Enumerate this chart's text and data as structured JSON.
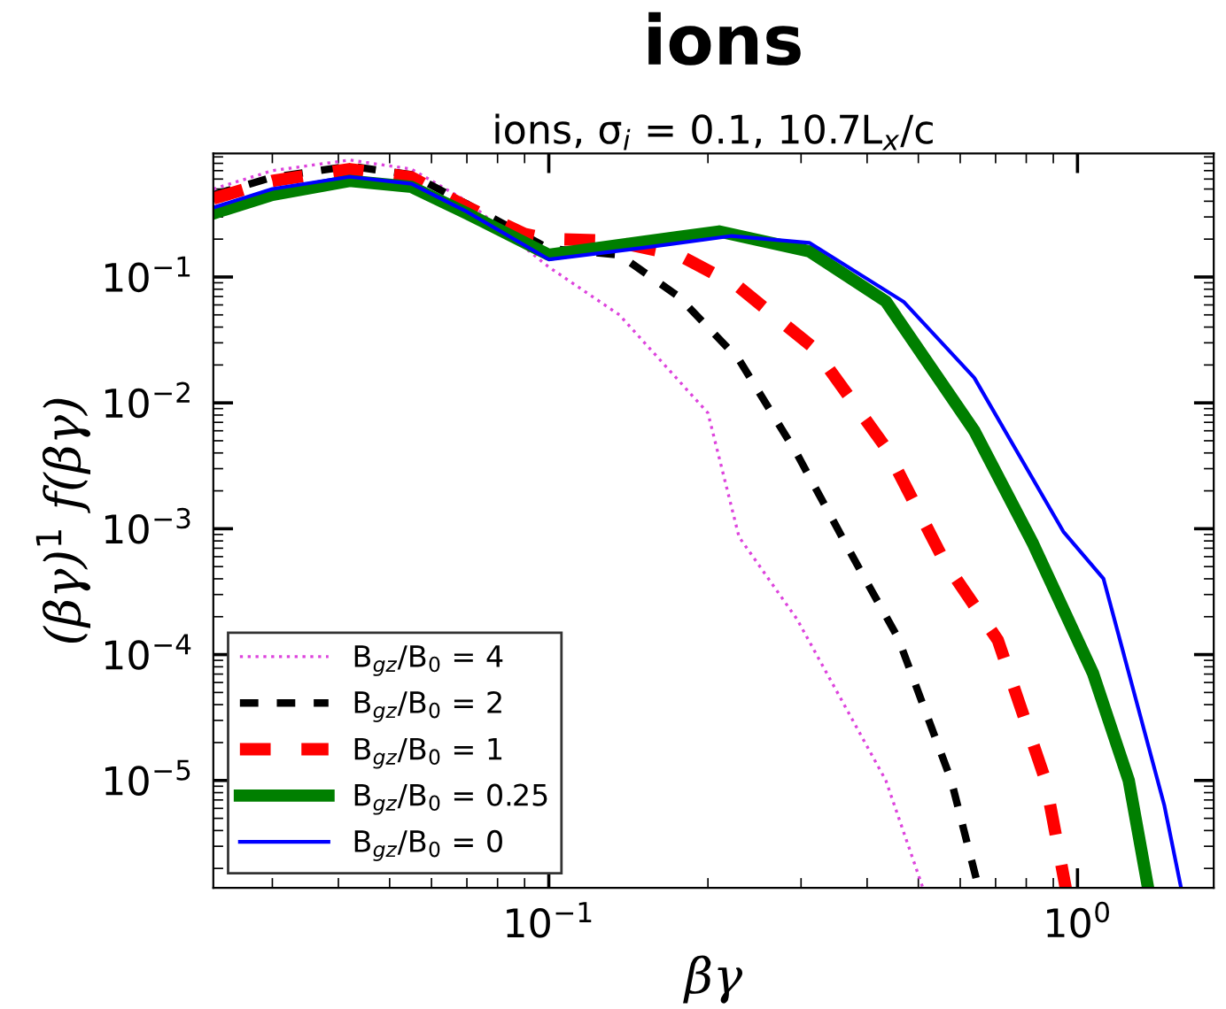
{
  "chart_data": {
    "type": "line",
    "title": "ions",
    "subtitle": "ions, σ$_{i}$ = 0.1, 10.7L$_{x}$/c",
    "xlabel": "βγ",
    "ylabel": "(βγ)$^{1}$ f(βγ)",
    "log": "xy",
    "xlim": [
      0.0232,
      1.81
    ],
    "ylim": [
      1.4e-06,
      0.96
    ],
    "xticks": [
      {
        "value": 0.1,
        "label": "10$^{−1}$"
      },
      {
        "value": 1,
        "label": "10$^{0}$"
      }
    ],
    "yticks": [
      {
        "value": 1e-05,
        "label": "10$^{−5}$"
      },
      {
        "value": 0.0001,
        "label": "10$^{−4}$"
      },
      {
        "value": 0.001,
        "label": "10$^{−3}$"
      },
      {
        "value": 0.01,
        "label": "10$^{−2}$"
      },
      {
        "value": 0.1,
        "label": "10$^{−1}$"
      }
    ],
    "grid": false,
    "legend": "bottom left",
    "marker": "none",
    "series": [
      {
        "name": "B$_{gz}$/B$_{0}$ = 4",
        "color": "#dd44dd",
        "line_style": "dotted",
        "x": [
          0.0232,
          0.03,
          0.042,
          0.055,
          0.07,
          0.1,
          0.136,
          0.2,
          0.229,
          0.295,
          0.434,
          0.51
        ],
        "values": [
          0.5,
          0.7,
          0.85,
          0.72,
          0.4,
          0.12,
          0.05,
          0.0083,
          0.00086,
          0.00019,
          1e-05,
          1.4e-06
        ]
      },
      {
        "name": "B$_{gz}$/B$_{0}$ = 2",
        "color": "#000000",
        "line_style": "dashed",
        "x": [
          0.0232,
          0.03,
          0.042,
          0.055,
          0.07,
          0.1,
          0.136,
          0.176,
          0.229,
          0.295,
          0.38,
          0.458,
          0.577,
          0.65
        ],
        "values": [
          0.45,
          0.62,
          0.76,
          0.65,
          0.38,
          0.168,
          0.15,
          0.07,
          0.022,
          0.0039,
          0.00055,
          0.000135,
          1e-05,
          1.4e-06
        ]
      },
      {
        "name": "B$_{gz}$/B$_{0}$ = 1",
        "color": "#ff0000",
        "line_style": "dashed",
        "x": [
          0.0232,
          0.03,
          0.042,
          0.055,
          0.07,
          0.09,
          0.1,
          0.13,
          0.176,
          0.229,
          0.318,
          0.434,
          0.56,
          0.707,
          0.87,
          0.95
        ],
        "values": [
          0.42,
          0.58,
          0.72,
          0.62,
          0.36,
          0.22,
          0.2,
          0.195,
          0.15,
          0.083,
          0.027,
          0.0044,
          0.00055,
          0.00013,
          1e-05,
          1.4e-06
        ]
      },
      {
        "name": "B$_{gz}$/B$_{0}$ = 0.25",
        "color": "#007f00",
        "line_style": "solid",
        "x": [
          0.0232,
          0.03,
          0.042,
          0.055,
          0.07,
          0.1,
          0.15,
          0.21,
          0.311,
          0.434,
          0.638,
          0.824,
          1.07,
          1.25,
          1.36
        ],
        "values": [
          0.32,
          0.45,
          0.58,
          0.52,
          0.32,
          0.15,
          0.19,
          0.23,
          0.16,
          0.064,
          0.006,
          0.00076,
          7.1e-05,
          1e-05,
          1.4e-06
        ]
      },
      {
        "name": "B$_{gz}$/B$_{0}$ = 0",
        "color": "#0000ff",
        "line_style": "solid",
        "x": [
          0.0232,
          0.03,
          0.042,
          0.055,
          0.07,
          0.1,
          0.15,
          0.222,
          0.311,
          0.469,
          0.638,
          0.94,
          1.12,
          1.46,
          1.57
        ],
        "values": [
          0.356,
          0.5,
          0.625,
          0.55,
          0.33,
          0.138,
          0.17,
          0.212,
          0.187,
          0.0636,
          0.0158,
          0.00095,
          0.0004,
          6.3e-06,
          1.4e-06
        ]
      }
    ]
  }
}
